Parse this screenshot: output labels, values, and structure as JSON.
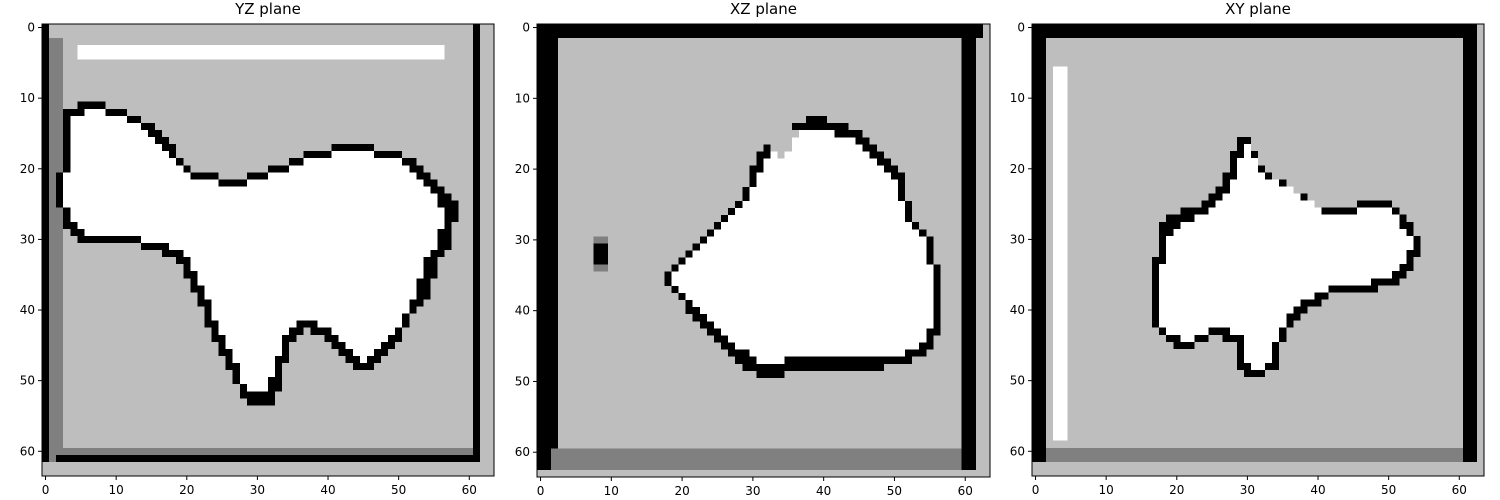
{
  "chart_data": [
    {
      "type": "heatmap",
      "title": "YZ plane",
      "grid_size": 64,
      "xlim": [
        0,
        63
      ],
      "ylim": [
        63,
        0
      ],
      "xticks": [
        0,
        10,
        20,
        30,
        40,
        50,
        60
      ],
      "yticks": [
        0,
        10,
        20,
        30,
        40,
        50,
        60
      ],
      "palette": [
        "#000000",
        "#808080",
        "#bebebe",
        "#ffffff"
      ],
      "regions": [
        {
          "shape": "rect",
          "x": [
            3,
            61
          ],
          "y": [
            1,
            60
          ],
          "value": 2
        },
        {
          "shape": "rect",
          "x": [
            0,
            1
          ],
          "y": [
            0,
            62
          ],
          "value": 0
        },
        {
          "shape": "rect",
          "x": [
            1,
            3
          ],
          "y": [
            2,
            62
          ],
          "value": 1
        },
        {
          "shape": "rect",
          "x": [
            61,
            62
          ],
          "y": [
            0,
            62
          ],
          "value": 0
        },
        {
          "shape": "rect",
          "x": [
            2,
            61
          ],
          "y": [
            61,
            62
          ],
          "value": 0
        },
        {
          "shape": "rect",
          "x": [
            2,
            61
          ],
          "y": [
            60,
            61
          ],
          "value": 1
        },
        {
          "shape": "rect",
          "x": [
            5,
            57
          ],
          "y": [
            3.5,
            4.5
          ],
          "value": 3
        },
        {
          "shape": "blob_outline",
          "points": [
            [
              3,
              12
            ],
            [
              8,
              11
            ],
            [
              13,
              13
            ],
            [
              17,
              15
            ],
            [
              19,
              18
            ],
            [
              22,
              21
            ],
            [
              28,
              22
            ],
            [
              34,
              20
            ],
            [
              38,
              18
            ],
            [
              45,
              17
            ],
            [
              50,
              18
            ],
            [
              54,
              20
            ],
            [
              57,
              23
            ],
            [
              59,
              26
            ],
            [
              58,
              31
            ],
            [
              56,
              34
            ],
            [
              55,
              38
            ],
            [
              52,
              42
            ],
            [
              50,
              46
            ],
            [
              47,
              49
            ],
            [
              44,
              49
            ],
            [
              41,
              45
            ],
            [
              37,
              43
            ],
            [
              35,
              46
            ],
            [
              34,
              50
            ],
            [
              33,
              54
            ],
            [
              29,
              54
            ],
            [
              27,
              50
            ],
            [
              24,
              44
            ],
            [
              22,
              39
            ],
            [
              19,
              33
            ],
            [
              12,
              31
            ],
            [
              6,
              31
            ],
            [
              3,
              28
            ],
            [
              2,
              24
            ],
            [
              3,
              18
            ]
          ],
          "value": 0
        },
        {
          "shape": "blob",
          "points": [
            [
              4,
              13
            ],
            [
              8,
              12
            ],
            [
              13,
              14
            ],
            [
              16,
              16
            ],
            [
              18,
              19
            ],
            [
              22,
              22
            ],
            [
              28,
              23
            ],
            [
              34,
              21
            ],
            [
              38,
              19
            ],
            [
              45,
              18
            ],
            [
              50,
              19
            ],
            [
              53,
              21
            ],
            [
              56,
              24
            ],
            [
              57,
              27
            ],
            [
              56,
              31
            ],
            [
              54,
              34
            ],
            [
              53,
              38
            ],
            [
              51,
              42
            ],
            [
              49,
              45
            ],
            [
              46,
              48
            ],
            [
              44,
              47
            ],
            [
              41,
              43
            ],
            [
              37,
              42
            ],
            [
              34,
              45
            ],
            [
              33,
              49
            ],
            [
              32,
              52
            ],
            [
              29,
              52
            ],
            [
              28,
              49
            ],
            [
              25,
              43
            ],
            [
              23,
              38
            ],
            [
              20,
              32
            ],
            [
              12,
              30
            ],
            [
              6,
              30
            ],
            [
              4,
              27
            ],
            [
              3,
              24
            ],
            [
              4,
              18
            ]
          ],
          "value": 3
        }
      ]
    },
    {
      "type": "heatmap",
      "title": "XZ plane",
      "grid_size": 64,
      "xlim": [
        0,
        63
      ],
      "ylim": [
        63,
        0
      ],
      "xticks": [
        0,
        10,
        20,
        30,
        40,
        50,
        60
      ],
      "yticks": [
        0,
        10,
        20,
        30,
        40,
        50,
        60
      ],
      "palette": [
        "#000000",
        "#808080",
        "#bebebe",
        "#ffffff"
      ],
      "regions": [
        {
          "shape": "rect",
          "x": [
            0,
            63
          ],
          "y": [
            0,
            63
          ],
          "value": 2
        },
        {
          "shape": "rect",
          "x": [
            0,
            63
          ],
          "y": [
            0,
            1.5
          ],
          "value": 0
        },
        {
          "shape": "rect",
          "x": [
            0.5,
            2.5
          ],
          "y": [
            1.5,
            62.5
          ],
          "value": 0
        },
        {
          "shape": "rect",
          "x": [
            60,
            62
          ],
          "y": [
            1.5,
            62.5
          ],
          "value": 0
        },
        {
          "shape": "rect",
          "x": [
            2.5,
            60
          ],
          "y": [
            60.5,
            62.5
          ],
          "value": 1
        },
        {
          "shape": "rect",
          "x": [
            8,
            10
          ],
          "y": [
            30,
            35
          ],
          "value": 1
        },
        {
          "shape": "rect",
          "x": [
            8.5,
            9.5
          ],
          "y": [
            31,
            34
          ],
          "value": 0
        },
        {
          "shape": "blob_outline",
          "points": [
            [
              18,
              36
            ],
            [
              22,
              32
            ],
            [
              26,
              28
            ],
            [
              29,
              24
            ],
            [
              31,
              19
            ],
            [
              34,
              15
            ],
            [
              40,
              13
            ],
            [
              45,
              15
            ],
            [
              49,
              18
            ],
            [
              52,
              22
            ],
            [
              53,
              27
            ],
            [
              56,
              31
            ],
            [
              57,
              36
            ],
            [
              57,
              42
            ],
            [
              56,
              46
            ],
            [
              52,
              48
            ],
            [
              46,
              49
            ],
            [
              38,
              49
            ],
            [
              32,
              50
            ],
            [
              28,
              48
            ],
            [
              25,
              44
            ],
            [
              21,
              40
            ]
          ],
          "value": 0
        },
        {
          "shape": "blob",
          "points": [
            [
              19,
              36
            ],
            [
              23,
              32
            ],
            [
              27,
              28
            ],
            [
              30,
              24
            ],
            [
              32,
              20
            ],
            [
              35,
              16
            ],
            [
              40,
              15
            ],
            [
              45,
              16
            ],
            [
              48,
              19
            ],
            [
              51,
              23
            ],
            [
              52,
              27
            ],
            [
              55,
              31
            ],
            [
              56,
              36
            ],
            [
              56,
              42
            ],
            [
              55,
              45
            ],
            [
              51,
              47
            ],
            [
              46,
              47
            ],
            [
              38,
              47
            ],
            [
              32,
              48
            ],
            [
              29,
              46
            ],
            [
              26,
              43
            ],
            [
              22,
              39
            ]
          ],
          "value": 3
        },
        {
          "shape": "blob",
          "points": [
            [
              33,
              16
            ],
            [
              35,
              14
            ],
            [
              37,
              15
            ],
            [
              36,
              18
            ],
            [
              34,
              19
            ]
          ],
          "value": 2
        }
      ]
    },
    {
      "type": "heatmap",
      "title": "XY plane",
      "grid_size": 64,
      "xlim": [
        0,
        63
      ],
      "ylim": [
        63,
        0
      ],
      "xticks": [
        0,
        10,
        20,
        30,
        40,
        50,
        60
      ],
      "yticks": [
        0,
        10,
        20,
        30,
        40,
        50,
        60
      ],
      "palette": [
        "#000000",
        "#808080",
        "#bebebe",
        "#ffffff"
      ],
      "regions": [
        {
          "shape": "rect",
          "x": [
            0,
            63
          ],
          "y": [
            0,
            63
          ],
          "value": 2
        },
        {
          "shape": "rect",
          "x": [
            0,
            63
          ],
          "y": [
            0,
            1.5
          ],
          "value": 0
        },
        {
          "shape": "rect",
          "x": [
            0.5,
            2
          ],
          "y": [
            1.5,
            62
          ],
          "value": 0
        },
        {
          "shape": "rect",
          "x": [
            61,
            62.5
          ],
          "y": [
            1.5,
            62
          ],
          "value": 0
        },
        {
          "shape": "rect",
          "x": [
            2,
            61
          ],
          "y": [
            60.5,
            62
          ],
          "value": 1
        },
        {
          "shape": "rect",
          "x": [
            3.5,
            4.5
          ],
          "y": [
            6.5,
            58.5
          ],
          "value": 3
        },
        {
          "shape": "blob_outline",
          "points": [
            [
              17,
              37
            ],
            [
              18,
              30
            ],
            [
              19,
              27
            ],
            [
              24,
              26
            ],
            [
              26,
              24
            ],
            [
              28,
              20
            ],
            [
              29,
              16
            ],
            [
              31,
              16
            ],
            [
              32,
              20
            ],
            [
              35,
              22
            ],
            [
              38,
              24
            ],
            [
              41,
              26
            ],
            [
              44,
              26
            ],
            [
              48,
              25
            ],
            [
              51,
              25
            ],
            [
              53,
              27
            ],
            [
              55,
              31
            ],
            [
              54,
              35
            ],
            [
              51,
              37
            ],
            [
              47,
              38
            ],
            [
              43,
              38
            ],
            [
              40,
              40
            ],
            [
              37,
              42
            ],
            [
              35,
              46
            ],
            [
              35,
              49
            ],
            [
              32,
              50
            ],
            [
              30,
              50
            ],
            [
              29,
              48
            ],
            [
              29,
              45
            ],
            [
              26,
              44
            ],
            [
              22,
              46
            ],
            [
              19,
              45
            ],
            [
              17,
              42
            ]
          ],
          "value": 0
        },
        {
          "shape": "blob",
          "points": [
            [
              18,
              37
            ],
            [
              19,
              31
            ],
            [
              21,
              28
            ],
            [
              25,
              27
            ],
            [
              27,
              25
            ],
            [
              29,
              21
            ],
            [
              30,
              17
            ],
            [
              31,
              17
            ],
            [
              32,
              21
            ],
            [
              36,
              23
            ],
            [
              39,
              25
            ],
            [
              42,
              27
            ],
            [
              45,
              27
            ],
            [
              48,
              26
            ],
            [
              51,
              26
            ],
            [
              52,
              28
            ],
            [
              54,
              31
            ],
            [
              53,
              34
            ],
            [
              50,
              36
            ],
            [
              47,
              37
            ],
            [
              43,
              37
            ],
            [
              39,
              39
            ],
            [
              36,
              42
            ],
            [
              34,
              46
            ],
            [
              34,
              48
            ],
            [
              32,
              49
            ],
            [
              31,
              49
            ],
            [
              30,
              47
            ],
            [
              30,
              44
            ],
            [
              26,
              43
            ],
            [
              22,
              45
            ],
            [
              20,
              44
            ],
            [
              18,
              42
            ]
          ],
          "value": 3
        }
      ]
    }
  ]
}
